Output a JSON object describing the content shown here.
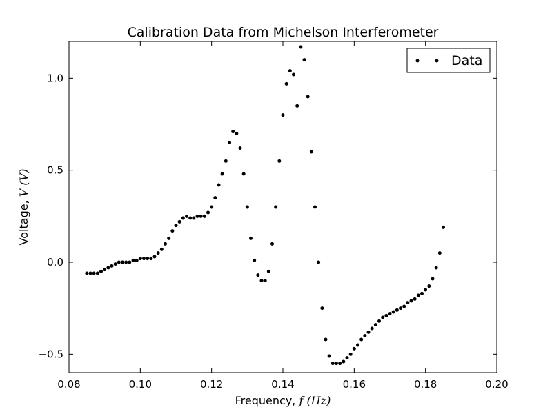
{
  "chart_data": {
    "type": "scatter",
    "title": "Calibration Data from Michelson Interferometer",
    "xlabel": {
      "prefix": "Frequency, ",
      "math": "f (Hz)"
    },
    "ylabel": {
      "prefix": "Voltage, ",
      "math": "V (V)"
    },
    "xlim": [
      0.08,
      0.2
    ],
    "ylim": [
      -0.6,
      1.2
    ],
    "xticks": [
      0.08,
      0.1,
      0.12,
      0.14,
      0.16,
      0.18,
      0.2
    ],
    "xtick_labels": [
      "0.08",
      "0.10",
      "0.12",
      "0.14",
      "0.16",
      "0.18",
      "0.20"
    ],
    "yticks": [
      -0.5,
      0.0,
      0.5,
      1.0
    ],
    "ytick_labels": [
      "−0.5",
      "0.0",
      "0.5",
      "1.0"
    ],
    "grid": false,
    "legend": {
      "position": "top-right",
      "entries": [
        "Data"
      ]
    },
    "marker_color": "#000000",
    "series": [
      {
        "name": "Data",
        "x": [
          0.085,
          0.086,
          0.087,
          0.088,
          0.089,
          0.09,
          0.091,
          0.092,
          0.093,
          0.094,
          0.095,
          0.096,
          0.097,
          0.098,
          0.099,
          0.1,
          0.101,
          0.102,
          0.103,
          0.104,
          0.105,
          0.106,
          0.107,
          0.108,
          0.109,
          0.11,
          0.111,
          0.112,
          0.113,
          0.114,
          0.115,
          0.116,
          0.117,
          0.118,
          0.119,
          0.12,
          0.121,
          0.122,
          0.123,
          0.124,
          0.125,
          0.126,
          0.127,
          0.128,
          0.129,
          0.13,
          0.131,
          0.132,
          0.133,
          0.134,
          0.135,
          0.136,
          0.137,
          0.138,
          0.139,
          0.14,
          0.141,
          0.142,
          0.143,
          0.144,
          0.145,
          0.146,
          0.147,
          0.148,
          0.149,
          0.15,
          0.151,
          0.152,
          0.153,
          0.154,
          0.155,
          0.156,
          0.157,
          0.158,
          0.159,
          0.16,
          0.161,
          0.162,
          0.163,
          0.164,
          0.165,
          0.166,
          0.167,
          0.168,
          0.169,
          0.17,
          0.171,
          0.172,
          0.173,
          0.174,
          0.175,
          0.176,
          0.177,
          0.178,
          0.179,
          0.18,
          0.181,
          0.182,
          0.183,
          0.184,
          0.185
        ],
        "y": [
          -0.06,
          -0.06,
          -0.06,
          -0.06,
          -0.05,
          -0.04,
          -0.03,
          -0.02,
          -0.01,
          0.0,
          0.0,
          0.0,
          0.0,
          0.01,
          0.01,
          0.02,
          0.02,
          0.02,
          0.02,
          0.03,
          0.05,
          0.07,
          0.1,
          0.13,
          0.17,
          0.2,
          0.22,
          0.24,
          0.25,
          0.24,
          0.24,
          0.25,
          0.25,
          0.25,
          0.27,
          0.3,
          0.35,
          0.42,
          0.48,
          0.55,
          0.65,
          0.71,
          0.7,
          0.62,
          0.48,
          0.3,
          0.13,
          0.01,
          -0.07,
          -0.1,
          -0.1,
          -0.05,
          0.1,
          0.3,
          0.55,
          0.8,
          0.97,
          1.04,
          1.02,
          0.85,
          1.17,
          1.1,
          0.9,
          0.6,
          0.3,
          0.0,
          -0.25,
          -0.42,
          -0.51,
          -0.55,
          -0.55,
          -0.55,
          -0.54,
          -0.52,
          -0.5,
          -0.47,
          -0.45,
          -0.42,
          -0.4,
          -0.38,
          -0.36,
          -0.34,
          -0.32,
          -0.3,
          -0.29,
          -0.28,
          -0.27,
          -0.26,
          -0.25,
          -0.24,
          -0.22,
          -0.21,
          -0.2,
          -0.18,
          -0.17,
          -0.15,
          -0.13,
          -0.09,
          -0.03,
          0.05,
          0.19
        ]
      }
    ]
  }
}
